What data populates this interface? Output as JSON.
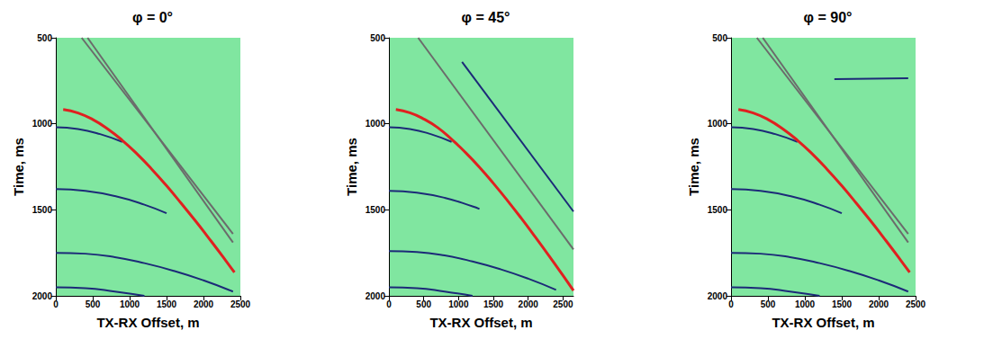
{
  "chart_data": [
    {
      "type": "line",
      "title": "φ = 0°",
      "x_label": "TX-RX Offset, m",
      "y_label": "Time, ms",
      "xlim": [
        0,
        2500
      ],
      "ylim": [
        500,
        2000
      ],
      "xticks": [
        0,
        500,
        1000,
        1500,
        2000,
        2500
      ],
      "yticks": [
        500,
        1000,
        1500,
        2000
      ],
      "series": [
        {
          "color": "#6b6b6b",
          "x": [
            350,
            2400
          ],
          "values": [
            500,
            1640
          ]
        },
        {
          "color": "#6b6b6b",
          "x": [
            430,
            2400
          ],
          "values": [
            500,
            1690
          ]
        },
        {
          "color": "#1c2a78",
          "x": [
            0,
            300,
            600,
            900
          ],
          "values": [
            1020,
            1030,
            1060,
            1105
          ]
        },
        {
          "color": "#1c2a78",
          "x": [
            0,
            400,
            800,
            1200,
            1500
          ],
          "values": [
            1380,
            1390,
            1420,
            1470,
            1520
          ]
        },
        {
          "color": "#1c2a78",
          "x": [
            0,
            400,
            800,
            1200,
            1600,
            2000,
            2400
          ],
          "values": [
            1750,
            1755,
            1775,
            1810,
            1855,
            1910,
            1975
          ]
        },
        {
          "color": "#1c2a78",
          "x": [
            0,
            400,
            800,
            1200
          ],
          "values": [
            1950,
            1955,
            1975,
            2000
          ]
        },
        {
          "color": "#e02020",
          "x": [
            100,
            300,
            500,
            700,
            900,
            1100,
            1300,
            1500,
            1700,
            1900,
            2100,
            2300,
            2420
          ],
          "values": [
            917,
            937,
            975,
            1029,
            1096,
            1175,
            1264,
            1360,
            1463,
            1569,
            1680,
            1794,
            1864
          ]
        }
      ]
    },
    {
      "type": "line",
      "title": "φ = 45°",
      "x_label": "TX-RX Offset, m",
      "y_label": "Time, ms",
      "xlim": [
        0,
        2650
      ],
      "ylim": [
        500,
        2000
      ],
      "xticks": [
        0,
        500,
        1000,
        1500,
        2000,
        2500
      ],
      "yticks": [
        500,
        1000,
        1500,
        2000
      ],
      "series": [
        {
          "color": "#6b6b6b",
          "x": [
            420,
            2650
          ],
          "values": [
            500,
            1730
          ]
        },
        {
          "color": "#1c2a78",
          "x": [
            1050,
            2650
          ],
          "values": [
            640,
            1510
          ]
        },
        {
          "color": "#1c2a78",
          "x": [
            0,
            300,
            600,
            900
          ],
          "values": [
            1020,
            1030,
            1060,
            1105
          ]
        },
        {
          "color": "#1c2a78",
          "x": [
            0,
            400,
            800,
            1200,
            1300
          ],
          "values": [
            1390,
            1400,
            1430,
            1480,
            1495
          ]
        },
        {
          "color": "#1c2a78",
          "x": [
            0,
            400,
            800,
            1200,
            1600,
            2000,
            2400
          ],
          "values": [
            1740,
            1745,
            1765,
            1800,
            1845,
            1900,
            1965
          ]
        },
        {
          "color": "#1c2a78",
          "x": [
            0,
            400,
            800,
            1200
          ],
          "values": [
            1950,
            1955,
            1975,
            2000
          ]
        },
        {
          "color": "#e02020",
          "x": [
            100,
            300,
            500,
            700,
            900,
            1100,
            1300,
            1500,
            1700,
            1900,
            2100,
            2300,
            2500,
            2650
          ],
          "values": [
            917,
            936,
            972,
            1022,
            1090,
            1167,
            1252,
            1346,
            1445,
            1549,
            1657,
            1768,
            1882,
            1969
          ]
        }
      ]
    },
    {
      "type": "line",
      "title": "φ = 90°",
      "x_label": "TX-RX Offset, m",
      "y_label": "Time, ms",
      "xlim": [
        0,
        2500
      ],
      "ylim": [
        500,
        2000
      ],
      "xticks": [
        0,
        500,
        1000,
        1500,
        2000,
        2500
      ],
      "yticks": [
        500,
        1000,
        1500,
        2000
      ],
      "series": [
        {
          "color": "#6b6b6b",
          "x": [
            350,
            2400
          ],
          "values": [
            500,
            1640
          ]
        },
        {
          "color": "#6b6b6b",
          "x": [
            430,
            2400
          ],
          "values": [
            500,
            1690
          ]
        },
        {
          "color": "#1c2a78",
          "x": [
            1400,
            2400
          ],
          "values": [
            740,
            735
          ]
        },
        {
          "color": "#1c2a78",
          "x": [
            0,
            300,
            600,
            900
          ],
          "values": [
            1020,
            1030,
            1060,
            1105
          ]
        },
        {
          "color": "#1c2a78",
          "x": [
            0,
            400,
            800,
            1200,
            1500
          ],
          "values": [
            1380,
            1390,
            1420,
            1470,
            1520
          ]
        },
        {
          "color": "#1c2a78",
          "x": [
            0,
            400,
            800,
            1200,
            1600,
            2000,
            2400
          ],
          "values": [
            1750,
            1755,
            1775,
            1810,
            1855,
            1910,
            1975
          ]
        },
        {
          "color": "#1c2a78",
          "x": [
            0,
            400,
            800,
            1200
          ],
          "values": [
            1950,
            1955,
            1975,
            2000
          ]
        },
        {
          "color": "#e02020",
          "x": [
            100,
            300,
            500,
            700,
            900,
            1100,
            1300,
            1500,
            1700,
            1900,
            2100,
            2300,
            2420
          ],
          "values": [
            917,
            937,
            975,
            1029,
            1096,
            1175,
            1264,
            1360,
            1463,
            1569,
            1680,
            1794,
            1864
          ]
        }
      ]
    }
  ]
}
